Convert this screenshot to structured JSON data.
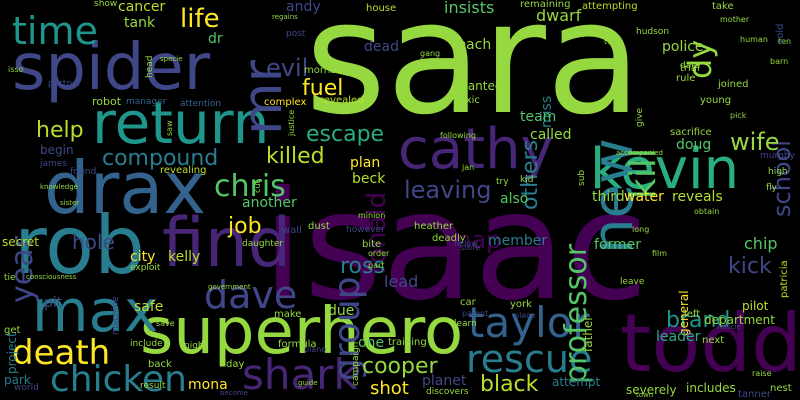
{
  "colors": {
    "background": "#000000",
    "palette": [
      "#95d840",
      "#440154",
      "#482677",
      "#404788",
      "#33638d",
      "#287d8e",
      "#1f968b",
      "#29af7f",
      "#55c667",
      "#b8de29",
      "#fde725"
    ]
  },
  "words": [
    {
      "text": "sara"
    },
    {
      "text": "isaac"
    },
    {
      "text": "spider"
    },
    {
      "text": "return"
    },
    {
      "text": "drax"
    },
    {
      "text": "rob"
    },
    {
      "text": "find"
    },
    {
      "text": "superhero"
    },
    {
      "text": "todd"
    },
    {
      "text": "cathy"
    },
    {
      "text": "kevin"
    },
    {
      "text": "max"
    },
    {
      "text": "taylor"
    },
    {
      "text": "shark"
    },
    {
      "text": "dave"
    },
    {
      "text": "chicken"
    },
    {
      "text": "rescue"
    },
    {
      "text": "death"
    },
    {
      "text": "time"
    },
    {
      "text": "new"
    },
    {
      "text": "mr"
    },
    {
      "text": "compound"
    },
    {
      "text": "kill"
    },
    {
      "text": "group"
    },
    {
      "text": "year"
    },
    {
      "text": "ronald"
    },
    {
      "text": "professor"
    },
    {
      "text": "chris"
    },
    {
      "text": "life"
    },
    {
      "text": "evil"
    },
    {
      "text": "fuel"
    },
    {
      "text": "escape"
    },
    {
      "text": "killed"
    },
    {
      "text": "help"
    },
    {
      "text": "hole"
    },
    {
      "text": "map"
    },
    {
      "text": "ross"
    },
    {
      "text": "job"
    },
    {
      "text": "leaving"
    },
    {
      "text": "wife"
    },
    {
      "text": "kick"
    },
    {
      "text": "brand"
    },
    {
      "text": "black"
    },
    {
      "text": "cooper"
    },
    {
      "text": "shot"
    },
    {
      "text": "others"
    },
    {
      "text": "school"
    },
    {
      "text": "dy"
    },
    {
      "text": "cancer"
    },
    {
      "text": "tank"
    },
    {
      "text": "andy"
    },
    {
      "text": "insists"
    },
    {
      "text": "dwarf"
    },
    {
      "text": "reach"
    },
    {
      "text": "police"
    },
    {
      "text": "dead"
    },
    {
      "text": "dr"
    },
    {
      "text": "miss"
    },
    {
      "text": "team"
    },
    {
      "text": "called"
    },
    {
      "text": "wanted"
    },
    {
      "text": "doug"
    },
    {
      "text": "plan"
    },
    {
      "text": "beck"
    },
    {
      "text": "third"
    },
    {
      "text": "water"
    },
    {
      "text": "reveals"
    },
    {
      "text": "also"
    },
    {
      "text": "another"
    },
    {
      "text": "kelly"
    },
    {
      "text": "city"
    },
    {
      "text": "member"
    },
    {
      "text": "former"
    },
    {
      "text": "chip"
    },
    {
      "text": "general"
    },
    {
      "text": "safe"
    },
    {
      "text": "due"
    },
    {
      "text": "lead"
    },
    {
      "text": "department"
    },
    {
      "text": "leader"
    },
    {
      "text": "pilot"
    },
    {
      "text": "mona"
    },
    {
      "text": "one"
    },
    {
      "text": "planet"
    },
    {
      "text": "attempt"
    },
    {
      "text": "begin"
    },
    {
      "text": "pit"
    },
    {
      "text": "park"
    },
    {
      "text": "project"
    },
    {
      "text": "secret"
    },
    {
      "text": "father"
    },
    {
      "text": "severely"
    },
    {
      "text": "includes"
    },
    {
      "text": "tanner"
    },
    {
      "text": "nest"
    },
    {
      "text": "robot"
    },
    {
      "text": "house"
    },
    {
      "text": "remaining"
    },
    {
      "text": "attempting"
    },
    {
      "text": "take"
    },
    {
      "text": "manager"
    },
    {
      "text": "attention"
    },
    {
      "text": "complex"
    },
    {
      "text": "revealed"
    },
    {
      "text": "morris"
    },
    {
      "text": "joined"
    },
    {
      "text": "young"
    },
    {
      "text": "sacrifice"
    },
    {
      "text": "murphy"
    },
    {
      "text": "high"
    },
    {
      "text": "fly"
    },
    {
      "text": "patricia"
    },
    {
      "text": "revealing"
    },
    {
      "text": "friend"
    },
    {
      "text": "james"
    },
    {
      "text": "tie"
    },
    {
      "text": "include"
    },
    {
      "text": "machine"
    },
    {
      "text": "formula"
    },
    {
      "text": "training"
    },
    {
      "text": "make"
    },
    {
      "text": "campaign"
    },
    {
      "text": "discovers"
    },
    {
      "text": "heather"
    },
    {
      "text": "deadly"
    },
    {
      "text": "bite"
    },
    {
      "text": "dust"
    },
    {
      "text": "however"
    },
    {
      "text": "york"
    },
    {
      "text": "car"
    },
    {
      "text": "learn"
    },
    {
      "text": "left"
    },
    {
      "text": "next"
    },
    {
      "text": "leave"
    },
    {
      "text": "get"
    },
    {
      "text": "world"
    },
    {
      "text": "back"
    },
    {
      "text": "day"
    },
    {
      "text": "result"
    },
    {
      "text": "night"
    },
    {
      "text": "wall"
    },
    {
      "text": "exploit"
    },
    {
      "text": "daughter"
    },
    {
      "text": "toxic"
    },
    {
      "text": "trial"
    },
    {
      "text": "hudson"
    },
    {
      "text": "rule"
    },
    {
      "text": "data"
    },
    {
      "text": "give"
    },
    {
      "text": "sub"
    },
    {
      "text": "kid"
    },
    {
      "text": "try"
    },
    {
      "text": "fellow"
    },
    {
      "text": "minion"
    },
    {
      "text": "store"
    },
    {
      "text": "parent"
    },
    {
      "text": "place"
    },
    {
      "text": "long"
    },
    {
      "text": "accompanied"
    },
    {
      "text": "following"
    },
    {
      "text": "show"
    },
    {
      "text": "head"
    },
    {
      "text": "regains"
    },
    {
      "text": "specie"
    },
    {
      "text": "partner"
    },
    {
      "text": "led"
    },
    {
      "text": "gang"
    },
    {
      "text": "hall"
    },
    {
      "text": "justice"
    },
    {
      "text": "post"
    },
    {
      "text": "twin"
    },
    {
      "text": "barn"
    },
    {
      "text": "ten"
    },
    {
      "text": "guide"
    },
    {
      "text": "become"
    },
    {
      "text": "government"
    },
    {
      "text": "vehicle"
    },
    {
      "text": "order"
    },
    {
      "text": "part"
    },
    {
      "text": "consciousness"
    },
    {
      "text": "plane"
    },
    {
      "text": "cut"
    },
    {
      "text": "saw"
    },
    {
      "text": "isso"
    },
    {
      "text": "sold"
    },
    {
      "text": "jan"
    },
    {
      "text": "obtain"
    },
    {
      "text": "human"
    },
    {
      "text": "raise"
    },
    {
      "text": "mother"
    },
    {
      "text": "film"
    },
    {
      "text": "town"
    },
    {
      "text": "save"
    },
    {
      "text": "knowledge"
    },
    {
      "text": "pick"
    },
    {
      "text": "sister"
    }
  ]
}
